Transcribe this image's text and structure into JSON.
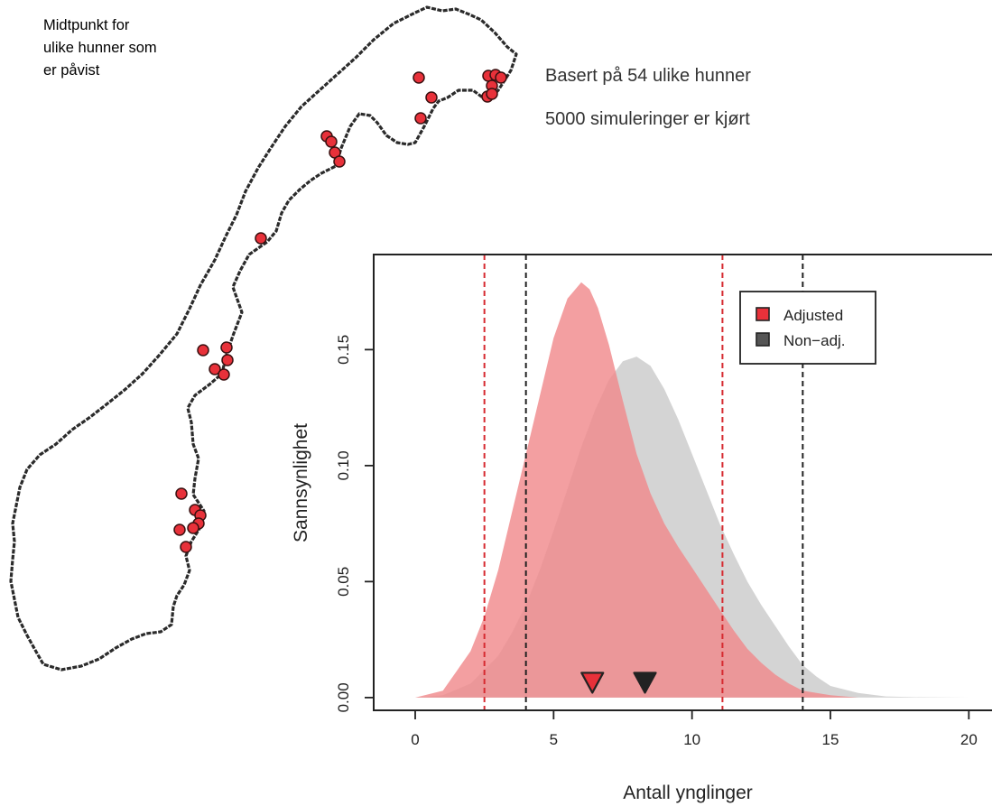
{
  "map": {
    "caption_lines": [
      "Midtpunkt for",
      "ulike hunner som",
      "er påvist"
    ],
    "point_color": "#e8313a",
    "coastline_color": "#2b2b2b",
    "icon": "norway-outline-map"
  },
  "info": {
    "line1": "Basert på 54 ulike hunner",
    "line2": "5000 simuleringer er kjørt"
  },
  "chart_data": {
    "type": "area",
    "xlabel": "Antall ynglinger",
    "ylabel": "Sannsynlighet",
    "xlim": [
      -1.5,
      21
    ],
    "ylim": [
      -0.0055,
      0.191
    ],
    "x_ticks": [
      0,
      5,
      10,
      15,
      20
    ],
    "y_ticks": [
      0.0,
      0.05,
      0.1,
      0.15
    ],
    "x_tick_labels": [
      "0",
      "5",
      "10",
      "15",
      "20"
    ],
    "y_tick_labels": [
      "0.00",
      "0.05",
      "0.10",
      "0.15"
    ],
    "grid": false,
    "legend": {
      "placement": "top-right",
      "entries": [
        {
          "label": "Adjusted",
          "color": "#e8313a"
        },
        {
          "label": "Non−adj.",
          "color": "#555555"
        }
      ]
    },
    "series": [
      {
        "name": "Adjusted",
        "fill": "#f08a8c",
        "x": [
          0,
          1,
          2,
          2.5,
          3,
          3.5,
          4,
          4.5,
          5,
          5.5,
          6,
          6.3,
          6.6,
          7,
          7.5,
          8,
          8.5,
          9,
          9.5,
          10,
          10.5,
          11,
          11.5,
          12,
          12.5,
          13,
          13.5,
          14,
          15,
          16
        ],
        "y": [
          0.0,
          0.003,
          0.02,
          0.035,
          0.055,
          0.08,
          0.105,
          0.13,
          0.155,
          0.172,
          0.179,
          0.176,
          0.168,
          0.152,
          0.128,
          0.105,
          0.088,
          0.075,
          0.065,
          0.056,
          0.047,
          0.038,
          0.029,
          0.021,
          0.015,
          0.01,
          0.006,
          0.003,
          0.001,
          0.0
        ]
      },
      {
        "name": "Non−adj.",
        "fill": "#cccccc",
        "x": [
          0,
          1,
          2,
          3,
          3.5,
          4,
          4.5,
          5,
          5.5,
          6,
          6.5,
          7,
          7.5,
          8,
          8.5,
          9,
          9.5,
          10,
          10.5,
          11,
          11.5,
          12,
          12.5,
          13,
          13.5,
          14,
          14.5,
          15,
          16,
          17,
          18,
          20
        ],
        "y": [
          0.0,
          0.001,
          0.006,
          0.018,
          0.028,
          0.04,
          0.055,
          0.072,
          0.09,
          0.108,
          0.124,
          0.137,
          0.145,
          0.147,
          0.143,
          0.133,
          0.12,
          0.105,
          0.09,
          0.075,
          0.062,
          0.05,
          0.04,
          0.031,
          0.022,
          0.014,
          0.009,
          0.005,
          0.002,
          0.0005,
          0.0002,
          0.0
        ]
      }
    ],
    "vlines": [
      {
        "x": 2.5,
        "color": "#d62a30"
      },
      {
        "x": 11.1,
        "color": "#d62a30"
      },
      {
        "x": 4.0,
        "color": "#222222"
      },
      {
        "x": 14.0,
        "color": "#222222"
      }
    ],
    "markers": [
      {
        "x": 6.4,
        "y": 0.006,
        "color": "#e8313a"
      },
      {
        "x": 8.3,
        "y": 0.006,
        "color": "#222222"
      }
    ]
  }
}
